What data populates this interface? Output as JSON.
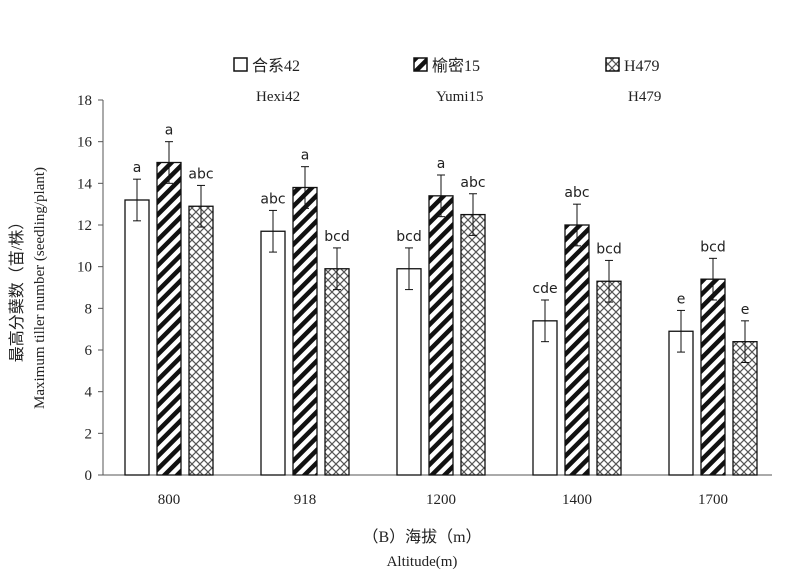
{
  "chart_data": {
    "type": "bar",
    "legend": [
      {
        "name": "合系42",
        "subname": "Hexi42",
        "pattern": "open"
      },
      {
        "name": "榆密15",
        "subname": "Yumi15",
        "pattern": "diagonal"
      },
      {
        "name": "H479",
        "subname": "H479",
        "pattern": "crosshatch"
      }
    ],
    "categories": [
      "800",
      "918",
      "1200",
      "1400",
      "1700"
    ],
    "series": [
      {
        "name": "合系42",
        "values": [
          13.2,
          11.7,
          9.9,
          7.4,
          6.9
        ],
        "errors": [
          1.0,
          1.0,
          1.0,
          1.0,
          1.0
        ],
        "letters": [
          "a",
          "abc",
          "bcd",
          "cde",
          "e"
        ]
      },
      {
        "name": "榆密15",
        "values": [
          15.0,
          13.8,
          13.4,
          12.0,
          9.4
        ],
        "errors": [
          1.0,
          1.0,
          1.0,
          1.0,
          1.0
        ],
        "letters": [
          "a",
          "a",
          "a",
          "abc",
          "bcd"
        ]
      },
      {
        "name": "H479",
        "values": [
          12.9,
          9.9,
          12.5,
          9.3,
          6.4
        ],
        "errors": [
          1.0,
          1.0,
          1.0,
          1.0,
          1.0
        ],
        "letters": [
          "abc",
          "bcd",
          "abc",
          "bcd",
          "e"
        ]
      }
    ],
    "ylabel_cn": "最高分蘖数（苗/株）",
    "ylabel_en": "Maximum tiller number (seedling/plant)",
    "xlabel_cn": "（B）海拔（m）",
    "xlabel_en": "Altitude(m)",
    "ylim": [
      0,
      18
    ],
    "yticks": [
      0,
      2,
      4,
      6,
      8,
      10,
      12,
      14,
      16,
      18
    ],
    "colors": {
      "bar_stroke": "#111111",
      "bar_fill": "#ffffff",
      "axis": "#555555"
    }
  }
}
